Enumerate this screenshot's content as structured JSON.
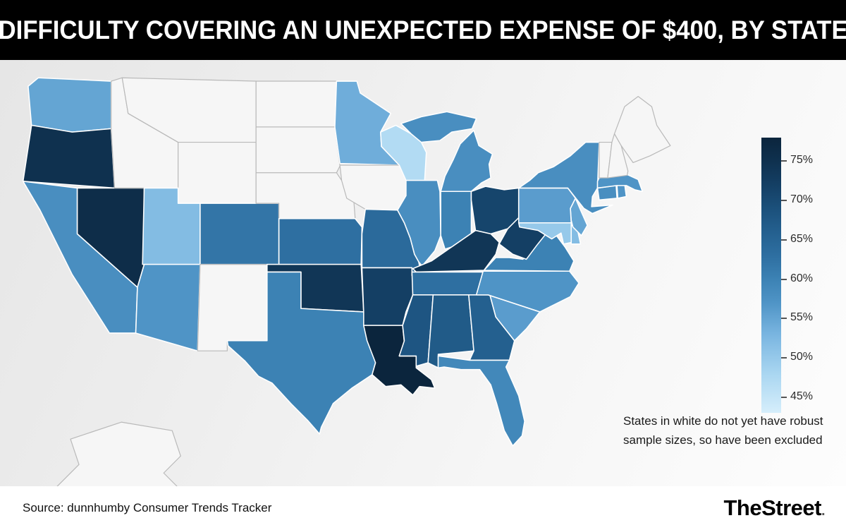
{
  "header": {
    "title": "DIFFICULTY COVERING AN UNEXPECTED EXPENSE OF $400, BY STATE",
    "bg_color": "#000000",
    "text_color": "#ffffff"
  },
  "note": {
    "line1": "States in white do not yet have robust",
    "line2": "sample sizes, so have been excluded"
  },
  "footer": {
    "source": "Source: dunnhumby Consumer Trends Tracker",
    "brand": "TheStreet",
    "brand_period": "."
  },
  "legend": {
    "ticks": [
      "75%",
      "70%",
      "65%",
      "60%",
      "55%",
      "50%",
      "45%"
    ],
    "tick_values": [
      75,
      70,
      65,
      60,
      55,
      50,
      45
    ]
  },
  "chart_data": {
    "type": "heatmap",
    "subtype": "us-state-choropleth",
    "title": "Difficulty covering an unexpected expense of $400, by state",
    "value_unit": "%",
    "legend_position": "right",
    "color_scale": {
      "domain": [
        43,
        78
      ],
      "stops": [
        [
          43,
          "#d6eefb"
        ],
        [
          48,
          "#a9d6f1"
        ],
        [
          53,
          "#79b5e0"
        ],
        [
          57,
          "#4f94c6"
        ],
        [
          60,
          "#3c82b4"
        ],
        [
          63,
          "#2e6fa1"
        ],
        [
          66,
          "#24608f"
        ],
        [
          69,
          "#1b507b"
        ],
        [
          72,
          "#143f64"
        ],
        [
          75,
          "#0f314f"
        ],
        [
          78,
          "#0b253d"
        ]
      ]
    },
    "colors": {
      "excluded_fill": "#f6f6f6",
      "excluded_stroke": "#b9b9b9",
      "state_stroke": "#ffffff"
    },
    "excluded_note": "States in white do not yet have robust sample sizes, so have been excluded",
    "states": [
      {
        "abbr": "WA",
        "name": "Washington",
        "value": 55
      },
      {
        "abbr": "OR",
        "name": "Oregon",
        "value": 75
      },
      {
        "abbr": "CA",
        "name": "California",
        "value": 58
      },
      {
        "abbr": "NV",
        "name": "Nevada",
        "value": 76
      },
      {
        "abbr": "ID",
        "name": "Idaho",
        "value": null
      },
      {
        "abbr": "MT",
        "name": "Montana",
        "value": null
      },
      {
        "abbr": "WY",
        "name": "Wyoming",
        "value": null
      },
      {
        "abbr": "UT",
        "name": "Utah",
        "value": 52
      },
      {
        "abbr": "CO",
        "name": "Colorado",
        "value": 62
      },
      {
        "abbr": "AZ",
        "name": "Arizona",
        "value": 57
      },
      {
        "abbr": "NM",
        "name": "New Mexico",
        "value": null
      },
      {
        "abbr": "ND",
        "name": "North Dakota",
        "value": null
      },
      {
        "abbr": "SD",
        "name": "South Dakota",
        "value": null
      },
      {
        "abbr": "NE",
        "name": "Nebraska",
        "value": null
      },
      {
        "abbr": "KS",
        "name": "Kansas",
        "value": 63
      },
      {
        "abbr": "OK",
        "name": "Oklahoma",
        "value": 74
      },
      {
        "abbr": "TX",
        "name": "Texas",
        "value": 60
      },
      {
        "abbr": "MN",
        "name": "Minnesota",
        "value": 54
      },
      {
        "abbr": "IA",
        "name": "Iowa",
        "value": null
      },
      {
        "abbr": "MO",
        "name": "Missouri",
        "value": 64
      },
      {
        "abbr": "AR",
        "name": "Arkansas",
        "value": 72
      },
      {
        "abbr": "LA",
        "name": "Louisiana",
        "value": 78
      },
      {
        "abbr": "WI",
        "name": "Wisconsin",
        "value": 47
      },
      {
        "abbr": "IL",
        "name": "Illinois",
        "value": 58
      },
      {
        "abbr": "IN",
        "name": "Indiana",
        "value": 60
      },
      {
        "abbr": "OH",
        "name": "Ohio",
        "value": 71
      },
      {
        "abbr": "MI",
        "name": "Michigan",
        "value": 58
      },
      {
        "abbr": "KY",
        "name": "Kentucky",
        "value": 74
      },
      {
        "abbr": "TN",
        "name": "Tennessee",
        "value": 63
      },
      {
        "abbr": "MS",
        "name": "Mississippi",
        "value": 68
      },
      {
        "abbr": "AL",
        "name": "Alabama",
        "value": 67
      },
      {
        "abbr": "GA",
        "name": "Georgia",
        "value": 66
      },
      {
        "abbr": "FL",
        "name": "Florida",
        "value": 59
      },
      {
        "abbr": "SC",
        "name": "South Carolina",
        "value": 56
      },
      {
        "abbr": "NC",
        "name": "North Carolina",
        "value": 57
      },
      {
        "abbr": "VA",
        "name": "Virginia",
        "value": 60
      },
      {
        "abbr": "WV",
        "name": "West Virginia",
        "value": 72
      },
      {
        "abbr": "MD",
        "name": "Maryland",
        "value": 50
      },
      {
        "abbr": "DE",
        "name": "Delaware",
        "value": 52
      },
      {
        "abbr": "NJ",
        "name": "New Jersey",
        "value": 55
      },
      {
        "abbr": "PA",
        "name": "Pennsylvania",
        "value": 56
      },
      {
        "abbr": "NY",
        "name": "New York",
        "value": 58
      },
      {
        "abbr": "CT",
        "name": "Connecticut",
        "value": 58
      },
      {
        "abbr": "RI",
        "name": "Rhode Island",
        "value": 57
      },
      {
        "abbr": "MA",
        "name": "Massachusetts",
        "value": 57
      },
      {
        "abbr": "VT",
        "name": "Vermont",
        "value": null
      },
      {
        "abbr": "NH",
        "name": "New Hampshire",
        "value": null
      },
      {
        "abbr": "ME",
        "name": "Maine",
        "value": null
      },
      {
        "abbr": "AK",
        "name": "Alaska",
        "value": null
      },
      {
        "abbr": "HI",
        "name": "Hawaii",
        "value": null
      }
    ]
  }
}
